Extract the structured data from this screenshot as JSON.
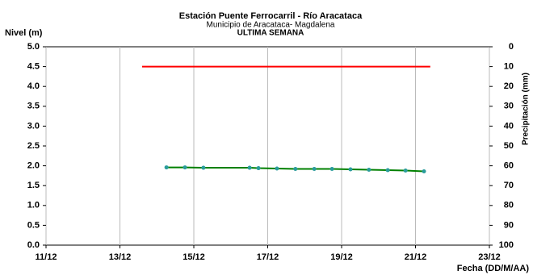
{
  "chart_data": {
    "type": "line",
    "title": "Estación Puente Ferrocarril - Río Aracataca",
    "subtitle": "Municipio de Aracataca- Magdalena",
    "subtitle2": "ULTIMA SEMANA",
    "y_label": "Nivel (m)",
    "y2_label": "Precipitación (mm)",
    "x_label": "Fecha (DD/M/AA)",
    "xlim": [
      11,
      23
    ],
    "xticks": [
      {
        "value": 11,
        "label": "11/12"
      },
      {
        "value": 13,
        "label": "13/12"
      },
      {
        "value": 15,
        "label": "15/12"
      },
      {
        "value": 17,
        "label": "17/12"
      },
      {
        "value": 19,
        "label": "19/12"
      },
      {
        "value": 21,
        "label": "21/12"
      },
      {
        "value": 23,
        "label": "23/12"
      }
    ],
    "ylim": [
      0,
      5
    ],
    "yticks": [
      {
        "value": 0,
        "label": "0.0"
      },
      {
        "value": 0.5,
        "label": "0.5"
      },
      {
        "value": 1,
        "label": "1.0"
      },
      {
        "value": 1.5,
        "label": "1.5"
      },
      {
        "value": 2,
        "label": "2.0"
      },
      {
        "value": 2.5,
        "label": "2.5"
      },
      {
        "value": 3,
        "label": "3.0"
      },
      {
        "value": 3.5,
        "label": "3.5"
      },
      {
        "value": 4,
        "label": "4.0"
      },
      {
        "value": 4.5,
        "label": "4.5"
      },
      {
        "value": 5,
        "label": "5.0"
      }
    ],
    "y2lim": [
      100,
      0
    ],
    "y2ticks": [
      0,
      10,
      20,
      30,
      40,
      50,
      60,
      70,
      80,
      90,
      100
    ],
    "grid": true,
    "series": [
      {
        "color": "#ff0000",
        "marker": false,
        "x": [
          13.6,
          21.4
        ],
        "values": [
          4.5,
          4.5
        ]
      },
      {
        "color": "#008000",
        "marker_color": "#2a9c9c",
        "marker": true,
        "x": [
          14.26,
          14.76,
          15.26,
          16.51,
          16.75,
          17.25,
          17.75,
          18.26,
          18.74,
          19.24,
          19.74,
          20.25,
          20.73,
          21.23
        ],
        "values": [
          1.96,
          1.96,
          1.95,
          1.95,
          1.94,
          1.93,
          1.92,
          1.92,
          1.92,
          1.91,
          1.9,
          1.89,
          1.88,
          1.86
        ]
      }
    ]
  }
}
